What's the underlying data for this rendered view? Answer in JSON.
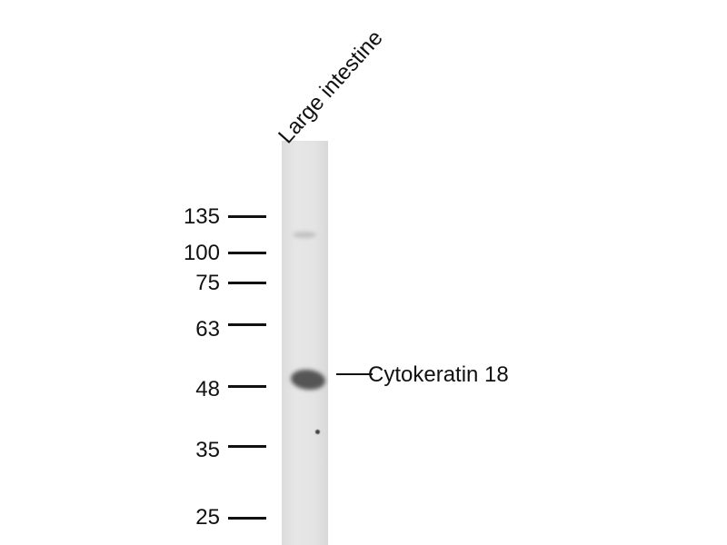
{
  "lane": {
    "label": "Large intestine"
  },
  "markers": [
    {
      "kda": "135"
    },
    {
      "kda": "100"
    },
    {
      "kda": "75"
    },
    {
      "kda": "63"
    },
    {
      "kda": "48"
    },
    {
      "kda": "35"
    },
    {
      "kda": "25"
    }
  ],
  "target": {
    "label": "Cytokeratin 18"
  }
}
